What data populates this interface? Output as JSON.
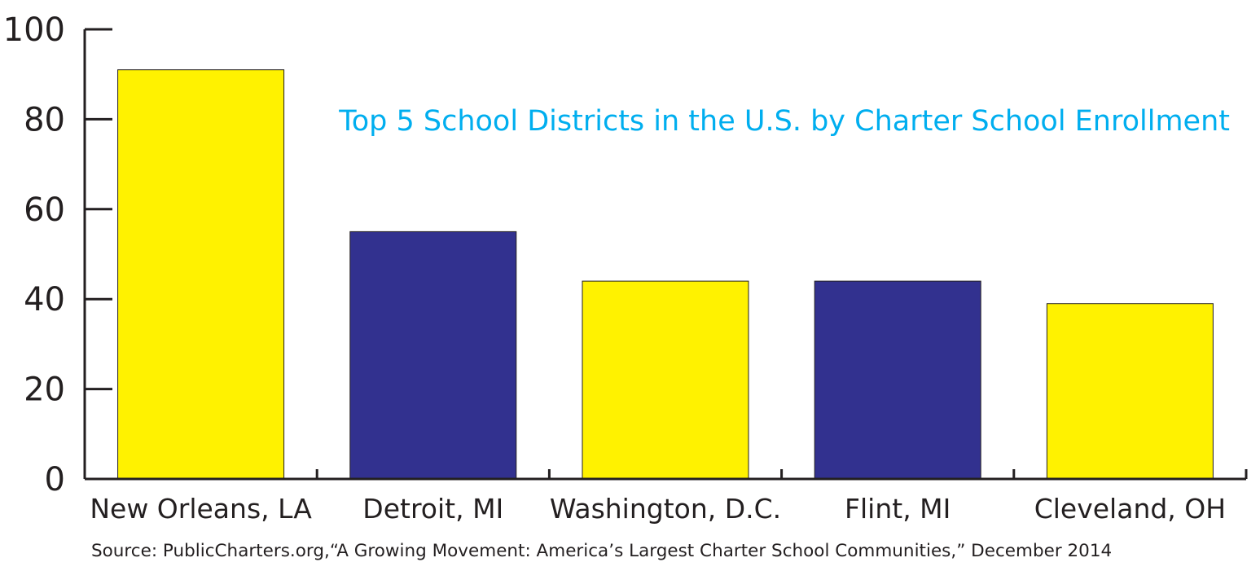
{
  "chart_data": {
    "type": "bar",
    "title": "Top 5 School Districts in the U.S. by Charter School Enrollment",
    "xlabel": "",
    "ylabel": "",
    "categories": [
      "New Orleans, LA",
      "Detroit, MI",
      "Washington, D.C.",
      "Flint, MI",
      "Cleveland, OH"
    ],
    "values": [
      91,
      55,
      44,
      44,
      39
    ],
    "bar_colors": [
      "#fff200",
      "#32318f",
      "#fff200",
      "#32318f",
      "#fff200"
    ],
    "ylim": [
      0,
      100
    ],
    "yticks": [
      0,
      20,
      40,
      60,
      80,
      100
    ],
    "grid": false,
    "source": "Source:  PublicCharters.org,“A Growing Movement: America’s Largest Charter School Communities,” December 2014"
  },
  "colors": {
    "title": "#00aeef",
    "axis": "#231f20",
    "bar_outline": "#231f20"
  }
}
